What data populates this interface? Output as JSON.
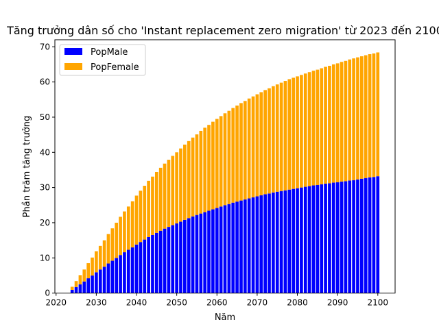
{
  "chart_data": {
    "type": "bar",
    "stacked": true,
    "title": "Tăng trưởng dân số cho 'Instant replacement zero migration' từ 2023 đến 2100",
    "xlabel": "Năm",
    "ylabel": "Phần trăm tăng trưởng",
    "xlim": [
      2019.7,
      2104.3
    ],
    "ylim": [
      0,
      72
    ],
    "xticks": [
      "2020",
      "2030",
      "2040",
      "2050",
      "2060",
      "2070",
      "2080",
      "2090",
      "2100"
    ],
    "yticks": [
      "0",
      "10",
      "20",
      "30",
      "40",
      "50",
      "60",
      "70"
    ],
    "legend_position": "top-left",
    "grid": false,
    "x": [
      2023,
      2024,
      2025,
      2026,
      2027,
      2028,
      2029,
      2030,
      2031,
      2032,
      2033,
      2034,
      2035,
      2036,
      2037,
      2038,
      2039,
      2040,
      2041,
      2042,
      2043,
      2044,
      2045,
      2046,
      2047,
      2048,
      2049,
      2050,
      2051,
      2052,
      2053,
      2054,
      2055,
      2056,
      2057,
      2058,
      2059,
      2060,
      2061,
      2062,
      2063,
      2064,
      2065,
      2066,
      2067,
      2068,
      2069,
      2070,
      2071,
      2072,
      2073,
      2074,
      2075,
      2076,
      2077,
      2078,
      2079,
      2080,
      2081,
      2082,
      2083,
      2084,
      2085,
      2086,
      2087,
      2088,
      2089,
      2090,
      2091,
      2092,
      2093,
      2094,
      2095,
      2096,
      2097,
      2098,
      2099,
      2100
    ],
    "series": [
      {
        "name": "PopMale",
        "color": "#0000ff",
        "values": [
          0.0,
          0.9,
          1.7,
          2.5,
          3.3,
          4.2,
          5.0,
          5.9,
          6.7,
          7.5,
          8.4,
          9.2,
          10.0,
          10.8,
          11.6,
          12.3,
          13.0,
          13.8,
          14.5,
          15.2,
          15.9,
          16.5,
          17.1,
          17.7,
          18.3,
          18.8,
          19.3,
          19.8,
          20.3,
          20.8,
          21.3,
          21.8,
          22.2,
          22.6,
          23.0,
          23.4,
          23.8,
          24.2,
          24.6,
          25.0,
          25.3,
          25.7,
          26.0,
          26.3,
          26.6,
          26.9,
          27.2,
          27.5,
          27.8,
          28.1,
          28.3,
          28.6,
          28.8,
          29.0,
          29.2,
          29.4,
          29.6,
          29.8,
          30.0,
          30.2,
          30.4,
          30.6,
          30.7,
          30.9,
          31.1,
          31.2,
          31.4,
          31.5,
          31.7,
          31.8,
          32.0,
          32.1,
          32.3,
          32.5,
          32.7,
          32.9,
          33.0,
          33.2
        ]
      },
      {
        "name": "PopFemale",
        "color": "#ffa500",
        "values": [
          0.0,
          0.9,
          1.7,
          2.6,
          3.4,
          4.3,
          5.1,
          6.0,
          6.7,
          7.5,
          8.4,
          9.2,
          10.0,
          10.9,
          11.6,
          12.3,
          13.1,
          13.9,
          14.6,
          15.3,
          16.0,
          16.6,
          17.3,
          17.9,
          18.5,
          19.1,
          19.7,
          20.2,
          20.8,
          21.4,
          21.9,
          22.4,
          22.9,
          23.5,
          24.0,
          24.4,
          24.9,
          25.3,
          25.7,
          26.1,
          26.5,
          26.9,
          27.3,
          27.7,
          28.0,
          28.4,
          28.7,
          29.0,
          29.3,
          29.6,
          29.9,
          30.2,
          30.5,
          30.8,
          31.1,
          31.4,
          31.6,
          31.8,
          32.0,
          32.2,
          32.4,
          32.6,
          32.8,
          33.0,
          33.2,
          33.4,
          33.6,
          33.8,
          34.0,
          34.2,
          34.4,
          34.6,
          34.7,
          34.8,
          34.9,
          35.0,
          35.1,
          35.2
        ]
      }
    ]
  }
}
